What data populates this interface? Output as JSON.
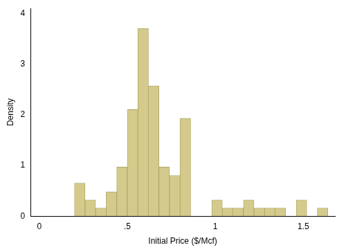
{
  "chart_data": {
    "type": "histogram",
    "x_label": "Initial Price ($/Mcf)",
    "y_label": "Density",
    "bins": [
      0.2,
      0.26,
      0.32,
      0.38,
      0.44,
      0.5,
      0.56,
      0.62,
      0.68,
      0.74,
      0.8,
      0.86,
      0.92,
      0.98,
      1.04,
      1.1,
      1.16,
      1.22,
      1.28,
      1.34,
      1.4,
      1.46,
      1.52,
      1.58,
      1.64
    ],
    "values": [
      0.65,
      0.32,
      0.16,
      0.48,
      0.97,
      2.1,
      3.7,
      2.57,
      0.97,
      0.8,
      1.93,
      0,
      0,
      0.32,
      0.16,
      0.16,
      0.32,
      0.16,
      0.16,
      0.16,
      0,
      0.32,
      0,
      0.16
    ],
    "color": "#d4ca8b",
    "xlim": [
      -0.05,
      1.68
    ],
    "xticks": [
      0,
      {
        "value": 0.5,
        "label": ".5"
      },
      1,
      1.5
    ],
    "ylim": [
      0,
      4.1
    ],
    "yticks": [
      0,
      1,
      2,
      3,
      4
    ],
    "grid": false
  }
}
